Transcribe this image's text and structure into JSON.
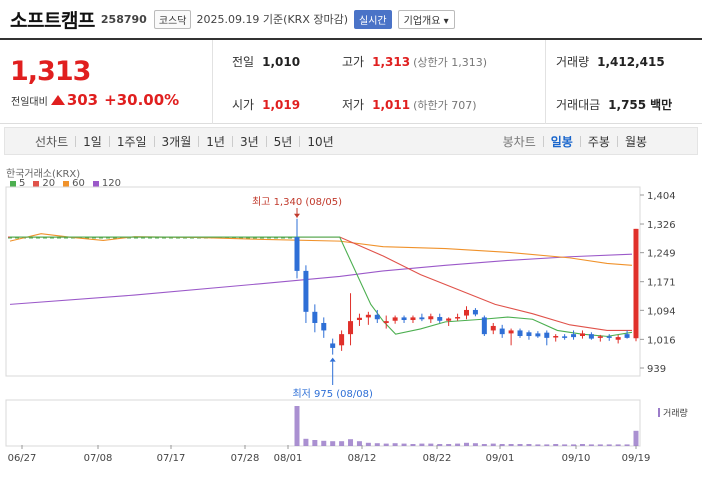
{
  "header": {
    "name": "소프트캠프",
    "code": "258790",
    "market": "코스닥",
    "date_text": "2025.09.19 기준(KRX 장마감)",
    "realtime": "실시간",
    "overview": "기업개요 ▾"
  },
  "summary": {
    "price": "1,313",
    "change_label": "전일대비",
    "change": "303",
    "change_pct": "+30.00%",
    "prev_label": "전일",
    "prev": "1,010",
    "open_label": "시가",
    "open": "1,019",
    "high_label": "고가",
    "high": "1,313",
    "high_note": "(상한가 1,313)",
    "low_label": "저가",
    "low": "1,011",
    "low_note": "(하한가 707)",
    "volume_label": "거래량",
    "volume": "1,412,415",
    "amount_label": "거래대금",
    "amount": "1,755",
    "amount_unit": "백만"
  },
  "tabs": {
    "line_label": "선차트",
    "line": [
      "1일",
      "1주일",
      "3개월",
      "1년",
      "3년",
      "5년",
      "10년"
    ],
    "candle_label": "봉차트",
    "candle": [
      "일봉",
      "주봉",
      "월봉"
    ],
    "active": "일봉"
  },
  "chart_data": {
    "type": "candlestick",
    "source_label": "한국거래소(KRX)",
    "ma_legend": [
      {
        "name": "5",
        "color": "#4caf50"
      },
      {
        "name": "20",
        "color": "#e0524a"
      },
      {
        "name": "60",
        "color": "#f0922b"
      },
      {
        "name": "120",
        "color": "#9b59c9"
      }
    ],
    "y_ticks": [
      1404,
      1326,
      1249,
      1171,
      1094,
      1016,
      939
    ],
    "ylim": [
      939,
      1404
    ],
    "x_ticks": [
      "06/27",
      "07/08",
      "07/17",
      "07/28",
      "08/01",
      "08/12",
      "08/22",
      "09/01",
      "09/10",
      "09/19"
    ],
    "annotations": {
      "high": "최고 1,340 (08/05)",
      "low": "최저 975 (08/08)"
    },
    "volume_label": "거래량",
    "flat_price": 1291,
    "candles": [
      [
        1291,
        1340,
        1180,
        1200
      ],
      [
        1200,
        1215,
        1060,
        1090
      ],
      [
        1090,
        1110,
        1035,
        1060
      ],
      [
        1060,
        1075,
        1020,
        1040
      ],
      [
        1005,
        1018,
        975,
        993
      ],
      [
        1000,
        1040,
        985,
        1030
      ],
      [
        1030,
        1140,
        1000,
        1065
      ],
      [
        1068,
        1085,
        1052,
        1074
      ],
      [
        1075,
        1090,
        1055,
        1082
      ],
      [
        1082,
        1095,
        1060,
        1070
      ],
      [
        1060,
        1080,
        1045,
        1065
      ],
      [
        1066,
        1080,
        1058,
        1075
      ],
      [
        1075,
        1080,
        1060,
        1068
      ],
      [
        1068,
        1080,
        1060,
        1075
      ],
      [
        1075,
        1085,
        1065,
        1070
      ],
      [
        1070,
        1085,
        1060,
        1078
      ],
      [
        1076,
        1085,
        1060,
        1066
      ],
      [
        1066,
        1075,
        1052,
        1072
      ],
      [
        1073,
        1085,
        1066,
        1076
      ],
      [
        1080,
        1105,
        1070,
        1095
      ],
      [
        1095,
        1100,
        1078,
        1083
      ],
      [
        1075,
        1080,
        1025,
        1030
      ],
      [
        1040,
        1060,
        1030,
        1052
      ],
      [
        1045,
        1055,
        1020,
        1030
      ],
      [
        1032,
        1045,
        1000,
        1040
      ],
      [
        1040,
        1045,
        1020,
        1025
      ],
      [
        1035,
        1040,
        1015,
        1025
      ],
      [
        1032,
        1038,
        1020,
        1024
      ],
      [
        1034,
        1040,
        1000,
        1020
      ],
      [
        1022,
        1030,
        1010,
        1025
      ],
      [
        1024,
        1030,
        1015,
        1020
      ],
      [
        1030,
        1040,
        1015,
        1022
      ],
      [
        1025,
        1040,
        1018,
        1032
      ],
      [
        1030,
        1035,
        1015,
        1018
      ],
      [
        1020,
        1028,
        1010,
        1024
      ],
      [
        1024,
        1030,
        1012,
        1020
      ],
      [
        1015,
        1028,
        1005,
        1022
      ],
      [
        1030,
        1040,
        1018,
        1020
      ],
      [
        1019,
        1313,
        1011,
        1313
      ]
    ],
    "volumes": [
      1.0,
      0.18,
      0.15,
      0.13,
      0.12,
      0.12,
      0.17,
      0.12,
      0.08,
      0.07,
      0.06,
      0.07,
      0.06,
      0.05,
      0.06,
      0.06,
      0.05,
      0.05,
      0.06,
      0.08,
      0.07,
      0.05,
      0.06,
      0.05,
      0.05,
      0.05,
      0.05,
      0.04,
      0.04,
      0.05,
      0.04,
      0.04,
      0.05,
      0.04,
      0.04,
      0.04,
      0.04,
      0.04,
      0.38
    ],
    "ma5": [
      [
        0,
        1291
      ],
      [
        0.53,
        1291
      ],
      [
        0.58,
        1110
      ],
      [
        0.6,
        1065
      ],
      [
        0.62,
        1030
      ],
      [
        0.66,
        1044
      ],
      [
        0.7,
        1063
      ],
      [
        0.76,
        1070
      ],
      [
        0.8,
        1076
      ],
      [
        0.84,
        1070
      ],
      [
        0.88,
        1040
      ],
      [
        0.92,
        1030
      ],
      [
        0.96,
        1024
      ],
      [
        1.0,
        1035
      ]
    ],
    "ma20": [
      [
        0,
        1291
      ],
      [
        0.53,
        1291
      ],
      [
        0.6,
        1240
      ],
      [
        0.66,
        1190
      ],
      [
        0.72,
        1150
      ],
      [
        0.78,
        1110
      ],
      [
        0.84,
        1085
      ],
      [
        0.9,
        1055
      ],
      [
        0.96,
        1040
      ],
      [
        1.0,
        1040
      ]
    ],
    "ma60": [
      [
        0,
        1280
      ],
      [
        0.05,
        1300
      ],
      [
        0.1,
        1290
      ],
      [
        0.15,
        1282
      ],
      [
        0.2,
        1292
      ],
      [
        0.3,
        1290
      ],
      [
        0.4,
        1285
      ],
      [
        0.53,
        1280
      ],
      [
        0.6,
        1265
      ],
      [
        0.7,
        1260
      ],
      [
        0.8,
        1250
      ],
      [
        0.9,
        1235
      ],
      [
        0.96,
        1220
      ],
      [
        1.0,
        1215
      ]
    ],
    "ma120": [
      [
        0,
        1110
      ],
      [
        0.2,
        1135
      ],
      [
        0.4,
        1165
      ],
      [
        0.53,
        1185
      ],
      [
        0.6,
        1200
      ],
      [
        0.7,
        1215
      ],
      [
        0.8,
        1228
      ],
      [
        0.9,
        1238
      ],
      [
        1.0,
        1245
      ]
    ]
  }
}
